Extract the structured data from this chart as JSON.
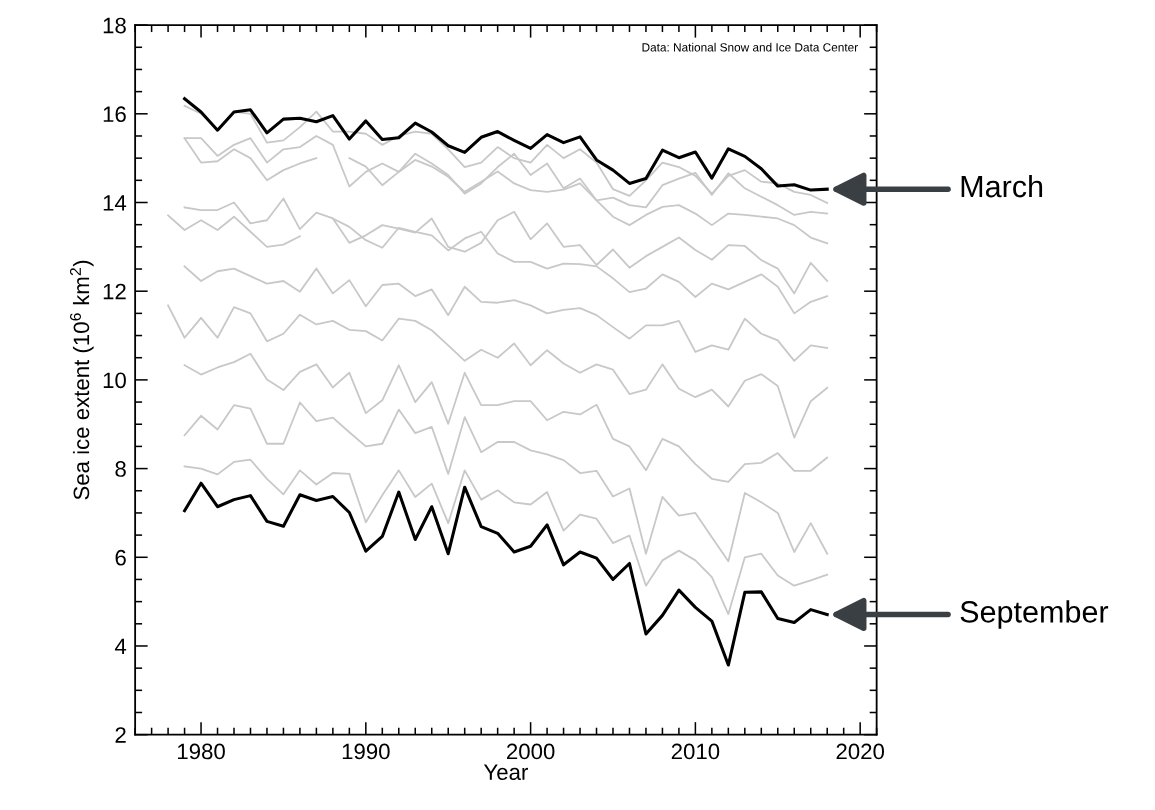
{
  "chart_data": {
    "type": "line",
    "xlabel": "Year",
    "ylabel": "Sea ice extent (10$^{6}$ km$^{2}$)",
    "xlim": [
      1976,
      2021
    ],
    "xticks": [
      1980,
      1990,
      2000,
      2010,
      2020
    ],
    "ylim": [
      2,
      18
    ],
    "yticks": [
      2,
      4,
      6,
      8,
      10,
      12,
      14,
      16,
      18
    ],
    "grid": false,
    "legend": false,
    "marker": "none",
    "line_style": "solid",
    "x": [
      1978,
      1979,
      1980,
      1981,
      1982,
      1983,
      1984,
      1985,
      1986,
      1987,
      1988,
      1989,
      1990,
      1991,
      1992,
      1993,
      1994,
      1995,
      1996,
      1997,
      1998,
      1999,
      2000,
      2001,
      2002,
      2003,
      2004,
      2005,
      2006,
      2007,
      2008,
      2009,
      2010,
      2011,
      2012,
      2013,
      2014,
      2015,
      2016,
      2017,
      2018
    ],
    "series": [
      {
        "color": "#c8c8c8",
        "values": [
          null,
          15.45,
          14.9,
          14.93,
          15.2,
          15.0,
          14.5,
          14.73,
          14.88,
          15.0,
          null,
          15.0,
          14.81,
          14.39,
          14.69,
          14.96,
          14.81,
          14.58,
          14.24,
          14.47,
          14.7,
          14.43,
          14.28,
          14.24,
          14.29,
          14.43,
          14.05,
          13.68,
          13.49,
          13.72,
          13.9,
          13.94,
          13.75,
          13.49,
          13.75,
          13.72,
          13.68,
          13.64,
          13.49,
          13.21,
          13.08
        ]
      },
      {
        "color": "#c8c8c8",
        "values": [
          null,
          16.18,
          16.0,
          15.65,
          16.05,
          16.0,
          15.35,
          15.4,
          15.7,
          16.05,
          15.6,
          15.6,
          15.55,
          15.3,
          15.5,
          15.6,
          15.55,
          15.2,
          14.8,
          14.9,
          15.25,
          15.0,
          14.9,
          15.3,
          15.0,
          15.2,
          14.9,
          14.3,
          14.15,
          14.5,
          14.9,
          14.8,
          14.6,
          14.2,
          14.6,
          14.73,
          14.47,
          14.43,
          14.24,
          14.17,
          13.99
        ]
      },
      {
        "color": "#000000",
        "values": [
          null,
          16.34,
          16.04,
          15.63,
          16.04,
          16.09,
          15.57,
          15.88,
          15.9,
          15.82,
          15.96,
          15.43,
          15.84,
          15.42,
          15.46,
          15.79,
          15.59,
          15.28,
          15.13,
          15.47,
          15.6,
          15.4,
          15.22,
          15.53,
          15.35,
          15.48,
          14.96,
          14.73,
          14.43,
          14.54,
          15.18,
          15.01,
          15.14,
          14.55,
          15.21,
          15.04,
          14.76,
          14.37,
          14.4,
          14.28,
          14.3
        ]
      },
      {
        "color": "#c8c8c8",
        "values": [
          null,
          15.45,
          15.45,
          15.05,
          15.3,
          15.45,
          14.9,
          15.2,
          15.25,
          15.5,
          15.3,
          14.36,
          14.69,
          14.88,
          14.69,
          15.1,
          14.88,
          14.62,
          14.2,
          14.43,
          14.8,
          15.1,
          14.62,
          14.88,
          14.32,
          14.54,
          14.05,
          14.11,
          13.94,
          13.89,
          14.39,
          14.54,
          14.67,
          14.17,
          14.66,
          14.32,
          14.13,
          13.94,
          13.72,
          13.79,
          13.75
        ]
      },
      {
        "color": "#c8c8c8",
        "values": [
          null,
          13.89,
          13.83,
          13.83,
          14.0,
          13.53,
          13.6,
          14.09,
          13.4,
          13.77,
          13.64,
          13.09,
          13.26,
          13.49,
          13.41,
          13.32,
          13.64,
          13.0,
          12.89,
          13.09,
          13.6,
          13.79,
          13.17,
          13.53,
          13.0,
          13.04,
          12.59,
          12.94,
          12.53,
          12.79,
          13.0,
          13.21,
          12.93,
          12.71,
          13.04,
          13.02,
          12.7,
          12.51,
          11.95,
          12.64,
          12.23
        ]
      },
      {
        "color": "#c8c8c8",
        "values": [
          null,
          12.56,
          12.23,
          12.45,
          12.51,
          12.34,
          12.17,
          12.23,
          11.99,
          12.51,
          11.95,
          12.25,
          11.66,
          12.14,
          12.17,
          11.89,
          12.04,
          11.46,
          12.1,
          11.76,
          11.74,
          11.8,
          11.68,
          11.5,
          11.58,
          11.62,
          11.46,
          11.19,
          10.93,
          11.23,
          11.23,
          11.33,
          10.63,
          10.78,
          10.68,
          11.38,
          11.04,
          10.89,
          10.43,
          10.78,
          10.72
        ]
      },
      {
        "color": "#c8c8c8",
        "values": [
          null,
          10.33,
          10.12,
          10.28,
          10.4,
          10.59,
          10.01,
          9.77,
          10.18,
          10.35,
          9.83,
          10.16,
          9.25,
          9.54,
          10.33,
          9.5,
          9.95,
          9.01,
          10.16,
          9.43,
          9.43,
          9.52,
          9.52,
          9.09,
          9.28,
          9.22,
          9.44,
          8.67,
          8.5,
          7.96,
          8.67,
          8.5,
          8.1,
          7.77,
          7.7,
          8.1,
          8.13,
          8.35,
          7.95,
          7.95,
          8.25
        ]
      },
      {
        "color": "#c8c8c8",
        "values": [
          null,
          8.05,
          8.0,
          7.87,
          8.15,
          8.2,
          7.77,
          7.42,
          7.96,
          7.64,
          7.9,
          7.88,
          6.79,
          7.4,
          7.96,
          7.36,
          7.66,
          6.77,
          7.96,
          7.3,
          7.51,
          7.24,
          7.19,
          7.47,
          6.6,
          6.96,
          6.87,
          6.32,
          6.49,
          5.36,
          5.93,
          6.15,
          5.93,
          5.55,
          4.72,
          6.0,
          6.08,
          5.59,
          5.36,
          5.48,
          5.61
        ]
      },
      {
        "color": "#000000",
        "values": [
          null,
          7.05,
          7.67,
          7.14,
          7.3,
          7.39,
          6.81,
          6.7,
          7.41,
          7.28,
          7.37,
          7.01,
          6.14,
          6.47,
          7.47,
          6.4,
          7.14,
          6.08,
          7.58,
          6.69,
          6.54,
          6.12,
          6.25,
          6.73,
          5.83,
          6.12,
          5.98,
          5.5,
          5.86,
          4.27,
          4.69,
          5.26,
          4.87,
          4.56,
          3.57,
          5.21,
          5.22,
          4.62,
          4.53,
          4.82,
          4.71
        ]
      },
      {
        "color": "#c8c8c8",
        "values": [
          null,
          8.75,
          9.19,
          8.88,
          9.43,
          9.35,
          8.56,
          8.56,
          9.49,
          9.07,
          9.15,
          8.82,
          8.5,
          8.56,
          9.33,
          8.8,
          8.94,
          7.88,
          9.16,
          8.37,
          8.6,
          8.6,
          8.41,
          8.32,
          8.19,
          7.9,
          7.95,
          7.37,
          7.55,
          6.08,
          7.36,
          6.94,
          7.0,
          6.45,
          5.91,
          7.45,
          7.24,
          7.0,
          6.12,
          6.77,
          6.08
        ]
      },
      {
        "color": "#c8c8c8",
        "values": [
          11.68,
          10.95,
          11.4,
          10.95,
          11.64,
          11.5,
          10.87,
          11.04,
          11.47,
          11.25,
          11.33,
          11.13,
          11.1,
          10.89,
          11.38,
          11.33,
          11.12,
          10.78,
          10.43,
          10.68,
          10.5,
          10.82,
          10.33,
          10.67,
          10.37,
          10.16,
          10.35,
          10.23,
          9.68,
          9.78,
          10.35,
          9.8,
          9.61,
          9.78,
          9.4,
          9.98,
          10.13,
          9.86,
          8.7,
          9.52,
          9.82
        ]
      },
      {
        "color": "#c8c8c8",
        "values": [
          13.71,
          13.38,
          13.6,
          13.38,
          13.68,
          13.34,
          13.0,
          13.05,
          13.24,
          null,
          13.64,
          13.45,
          13.15,
          12.98,
          13.43,
          13.34,
          13.26,
          12.92,
          13.19,
          13.34,
          12.85,
          12.66,
          12.66,
          12.51,
          12.62,
          12.61,
          12.56,
          12.29,
          11.98,
          12.06,
          12.38,
          12.21,
          11.87,
          12.17,
          12.04,
          12.21,
          12.38,
          12.1,
          11.5,
          11.76,
          11.89
        ]
      }
    ],
    "annotations": [
      {
        "text": "March",
        "x": 2018,
        "y": 14.3
      },
      {
        "text": "September",
        "x": 2018,
        "y": 4.71
      },
      "Data: National Snow and Ice Data Center"
    ]
  }
}
